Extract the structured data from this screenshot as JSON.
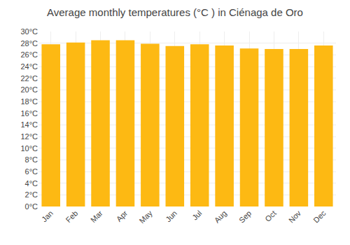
{
  "chart_data": {
    "type": "bar",
    "title": "Average monthly temperatures (°C ) in Ciénaga de Oro",
    "categories": [
      "Jan",
      "Feb",
      "Mar",
      "Apr",
      "May",
      "Jun",
      "Jul",
      "Aug",
      "Sep",
      "Oct",
      "Nov",
      "Dec"
    ],
    "values": [
      27.8,
      28.1,
      28.5,
      28.5,
      27.9,
      27.5,
      27.8,
      27.6,
      27.1,
      27.0,
      27.0,
      27.6
    ],
    "color": "#FDB913",
    "ylim": [
      0,
      30
    ],
    "yticks": [
      {
        "value": 0,
        "label": "0°C"
      },
      {
        "value": 2,
        "label": "2°C"
      },
      {
        "value": 4,
        "label": "4°C"
      },
      {
        "value": 6,
        "label": "6°C"
      },
      {
        "value": 8,
        "label": "8°C"
      },
      {
        "value": 10,
        "label": "10°C"
      },
      {
        "value": 12,
        "label": "12°C"
      },
      {
        "value": 14,
        "label": "14°C"
      },
      {
        "value": 16,
        "label": "16°C"
      },
      {
        "value": 18,
        "label": "18°C"
      },
      {
        "value": 20,
        "label": "20°C"
      },
      {
        "value": 22,
        "label": "22°C"
      },
      {
        "value": 24,
        "label": "24°C"
      },
      {
        "value": 26,
        "label": "26°C"
      },
      {
        "value": 28,
        "label": "28°C"
      },
      {
        "value": 30,
        "label": "30°C"
      }
    ],
    "grid": true
  }
}
